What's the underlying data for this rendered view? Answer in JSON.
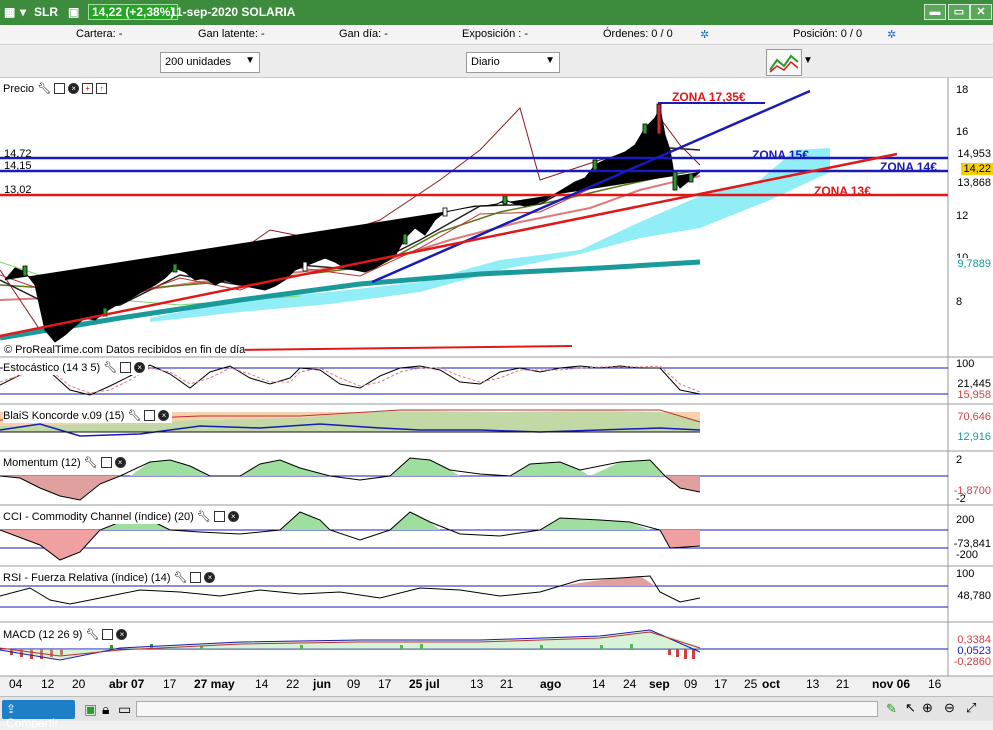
{
  "titlebar": {
    "symbol": "SLR",
    "price_badge": "14,22 (+2,38%)",
    "date_name": "11-sep-2020  SOLARIA"
  },
  "infobar": {
    "cartera": "Cartera: -",
    "gan_latente": "Gan latente: -",
    "gan_dia": "Gan día: -",
    "exposicion": "Exposición : -",
    "ordenes": "Órdenes: 0 / 0",
    "posicion": "Posición: 0  / 0"
  },
  "toolbar": {
    "units": "200 unidades",
    "period": "Diario"
  },
  "panes": {
    "precio": "Precio",
    "watermark": "© ProRealTime.com  Datos recibidos en fin de día",
    "estocastico": "Estocástico (14 3 5)",
    "koncorde": "BlaiS Koncorde v.09 (15)",
    "momentum": "Momentum (12)",
    "cci": "CCI - Commodity Channel (índice) (20)",
    "rsi": "RSI - Fuerza Relativa (índice) (14)",
    "macd": "MACD (12 26 9)"
  },
  "annotations": {
    "zona1735": "ZONA 17,35€",
    "zona15": "ZONA 15€",
    "zona14": "ZONA 14€",
    "zona13": "ZONA 13€",
    "lvl1472": "14,72",
    "lvl1415": "14,15",
    "lvl1302": "13,02"
  },
  "price_axis": [
    "18",
    "16",
    "12",
    "10",
    "8"
  ],
  "right_labels": {
    "p1": "14,953",
    "p2": "14,22",
    "p3": "13,868",
    "p4": "9,7889",
    "st1": "100",
    "st2": "21,445",
    "st3": "15,958",
    "k1": "70,646",
    "k2": "12,916",
    "m1": "2",
    "m2": "-1,8700",
    "m3": "-2",
    "c1": "200",
    "c2": "-73,841",
    "c3": "-200",
    "r1": "100",
    "r2": "48,780",
    "d1": "0,3384",
    "d2": "0,0523",
    "d3": "-0,2860"
  },
  "xaxis": [
    "04",
    "12",
    "20",
    "abr 07",
    "17",
    "27 may",
    "14",
    "22",
    "jun",
    "09",
    "17",
    "25 jul",
    "13",
    "21",
    "ago",
    "14",
    "24",
    "sep",
    "09",
    "17",
    "25",
    "oct",
    "13",
    "21",
    "nov 06",
    "16"
  ],
  "statusbar": {
    "share": "Compartir"
  },
  "colors": {
    "accent_green": "#3d8c3d",
    "zone_red": "#e81e1e",
    "zone_blue": "#1a1ab8",
    "cloud": "#7eeaf4"
  }
}
